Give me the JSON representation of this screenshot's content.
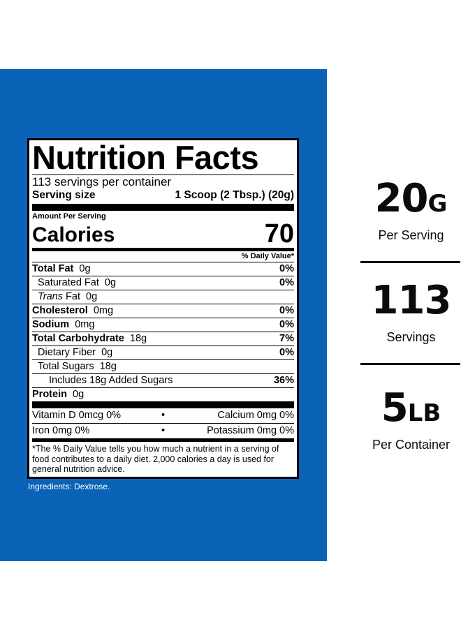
{
  "label": {
    "title": "Nutrition Facts",
    "servings_per_container": "113 servings per container",
    "serving_size_label": "Serving size",
    "serving_size_value": "1 Scoop (2 Tbsp.) (20g)",
    "amount_per_serving": "Amount Per Serving",
    "calories_label": "Calories",
    "calories_value": "70",
    "daily_value_header": "% Daily Value*",
    "nutrients": [
      {
        "name": "Total Fat",
        "amount": "0g",
        "dv": "0%"
      },
      {
        "name": "Saturated Fat",
        "amount": "0g",
        "dv": "0%"
      },
      {
        "name": "Trans",
        "name_suffix": "Fat",
        "amount": "0g",
        "dv": ""
      },
      {
        "name": "Cholesterol",
        "amount": "0mg",
        "dv": "0%"
      },
      {
        "name": "Sodium",
        "amount": "0mg",
        "dv": "0%"
      },
      {
        "name": "Total Carbohydrate",
        "amount": "18g",
        "dv": "7%"
      },
      {
        "name": "Dietary Fiber",
        "amount": "0g",
        "dv": "0%"
      },
      {
        "name": "Total Sugars",
        "amount": "18g",
        "dv": ""
      },
      {
        "name": "Includes 18g Added Sugars",
        "amount": "",
        "dv": "36%"
      },
      {
        "name": "Protein",
        "amount": "0g",
        "dv": ""
      }
    ],
    "vitamins": [
      {
        "left": "Vitamin D  0mcg  0%",
        "right": "Calcium  0mg  0%"
      },
      {
        "left": "Iron  0mg  0%",
        "right": "Potassium  0mg  0%"
      }
    ],
    "bullet": "•",
    "footnote": "*The % Daily Value tells you how much a nutrient in a serving of food contributes to a daily diet. 2,000 calories a day is used for general nutrition advice."
  },
  "ingredients": "Ingredients: Dextrose.",
  "stats": [
    {
      "number": "20",
      "unit": "G",
      "caption": "Per Serving"
    },
    {
      "number": "113",
      "unit": "",
      "caption": "Servings"
    },
    {
      "number": "5",
      "unit": "LB",
      "caption": "Per Container"
    }
  ],
  "colors": {
    "panel_blue": "#0a63b7",
    "text_dark": "#0b0b0b"
  }
}
